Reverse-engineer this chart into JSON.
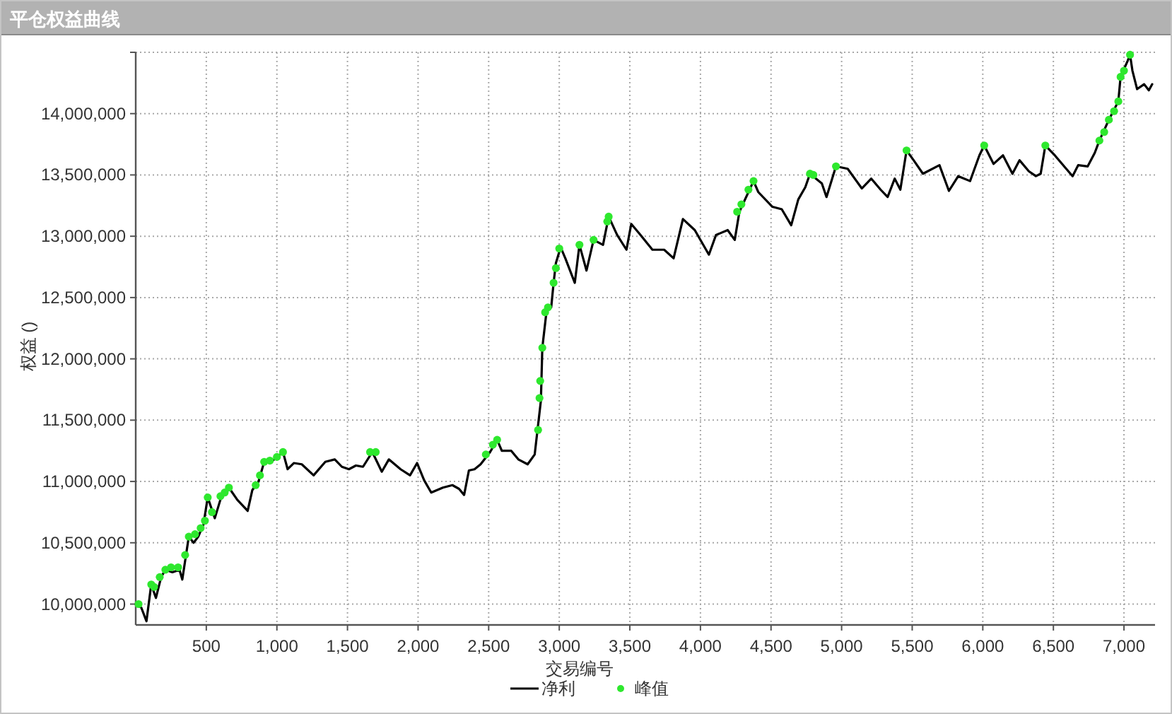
{
  "chart_data": {
    "type": "line",
    "title": "平仓权益曲线",
    "xlabel": "交易编号",
    "ylabel": "权益 ()",
    "xlim": [
      0,
      7220
    ],
    "ylim": [
      9830000,
      14500000
    ],
    "xticks": [
      500,
      {
        "value": 1000,
        "label": "1,000"
      },
      {
        "value": 1500,
        "label": "1,500"
      },
      {
        "value": 2000,
        "label": "2,000"
      },
      {
        "value": 2500,
        "label": "2,500"
      },
      {
        "value": 3000,
        "label": "3,000"
      },
      {
        "value": 3500,
        "label": "3,500"
      },
      {
        "value": 4000,
        "label": "4,000"
      },
      {
        "value": 4500,
        "label": "4,500"
      },
      {
        "value": 5000,
        "label": "5,000"
      },
      {
        "value": 5500,
        "label": "5,500"
      },
      {
        "value": 6000,
        "label": "6,000"
      },
      {
        "value": 6500,
        "label": "6,500"
      },
      {
        "value": 7000,
        "label": "7,000"
      }
    ],
    "yticks": [
      {
        "value": 10000000,
        "label": "10,000,000"
      },
      {
        "value": 10500000,
        "label": "10,500,000"
      },
      {
        "value": 11000000,
        "label": "11,000,000"
      },
      {
        "value": 11500000,
        "label": "11,500,000"
      },
      {
        "value": 12000000,
        "label": "12,000,000"
      },
      {
        "value": 12500000,
        "label": "12,500,000"
      },
      {
        "value": 13000000,
        "label": "13,000,000"
      },
      {
        "value": 13500000,
        "label": "13,500,000"
      },
      {
        "value": 14000000,
        "label": "14,000,000"
      },
      {
        "value": 14500000,
        "label": null
      }
    ],
    "grid": true,
    "legend": "bottom",
    "series": [
      {
        "name": "净利",
        "type": "line",
        "color": "#000000",
        "x": [
          0,
          40,
          76,
          110,
          143,
          180,
          210,
          260,
          310,
          330,
          376,
          410,
          443,
          480,
          510,
          560,
          610,
          660,
          720,
          793,
          826,
          870,
          910,
          960,
          1043,
          1076,
          1120,
          1176,
          1260,
          1343,
          1410,
          1460,
          1510,
          1560,
          1610,
          1676,
          1743,
          1793,
          1876,
          1943,
          1993,
          2043,
          2093,
          2176,
          2243,
          2290,
          2326,
          2360,
          2400,
          2443,
          2510,
          2560,
          2593,
          2660,
          2710,
          2776,
          2826,
          2843,
          2870,
          2880,
          2910,
          2943,
          2960,
          2976,
          3010,
          3043,
          3110,
          3143,
          3193,
          3243,
          3310,
          3350,
          3410,
          3476,
          3510,
          3576,
          3660,
          3743,
          3810,
          3876,
          3960,
          4060,
          4110,
          4193,
          4243,
          4276,
          4376,
          4410,
          4510,
          4576,
          4643,
          4693,
          4743,
          4776,
          4860,
          4893,
          4960,
          5043,
          5143,
          5210,
          5276,
          5326,
          5376,
          5416,
          5460,
          5510,
          5576,
          5693,
          5760,
          5826,
          5910,
          5976,
          6010,
          6076,
          6143,
          6210,
          6260,
          6326,
          6376,
          6410,
          6443,
          6510,
          6576,
          6636,
          6676,
          6743,
          6793,
          6826,
          6893,
          6960,
          6976,
          7026,
          7043,
          7060,
          7093,
          7143,
          7176,
          7200
        ],
        "values": [
          10000000,
          9970000,
          9860000,
          10160000,
          10050000,
          10220000,
          10280000,
          10260000,
          10280000,
          10200000,
          10550000,
          10500000,
          10550000,
          10650000,
          10870000,
          10700000,
          10890000,
          10950000,
          10850000,
          10760000,
          10930000,
          11000000,
          11160000,
          11160000,
          11240000,
          11100000,
          11150000,
          11140000,
          11050000,
          11160000,
          11180000,
          11120000,
          11100000,
          11130000,
          11120000,
          11240000,
          11080000,
          11180000,
          11100000,
          11050000,
          11150000,
          11010000,
          10910000,
          10950000,
          10970000,
          10940000,
          10890000,
          11090000,
          11100000,
          11140000,
          11240000,
          11340000,
          11250000,
          11250000,
          11180000,
          11140000,
          11220000,
          11390000,
          11660000,
          12090000,
          12390000,
          12420000,
          12620000,
          12780000,
          12910000,
          12820000,
          12620000,
          12930000,
          12720000,
          12970000,
          12930000,
          13160000,
          13010000,
          12890000,
          13100000,
          13010000,
          12890000,
          12890000,
          12820000,
          13140000,
          13050000,
          12850000,
          13010000,
          13050000,
          12970000,
          13200000,
          13450000,
          13360000,
          13240000,
          13220000,
          13090000,
          13300000,
          13400000,
          13510000,
          13430000,
          13320000,
          13570000,
          13550000,
          13390000,
          13470000,
          13380000,
          13320000,
          13470000,
          13380000,
          13700000,
          13620000,
          13510000,
          13580000,
          13370000,
          13490000,
          13450000,
          13660000,
          13740000,
          13590000,
          13660000,
          13510000,
          13620000,
          13530000,
          13490000,
          13510000,
          13740000,
          13660000,
          13570000,
          13490000,
          13580000,
          13570000,
          13680000,
          13780000,
          13950000,
          14100000,
          14300000,
          14430000,
          14480000,
          14350000,
          14200000,
          14240000,
          14190000,
          14240000
        ]
      },
      {
        "name": "峰值",
        "type": "scatter",
        "color": "#2ee82e",
        "marker": "circle",
        "x": [
          20,
          110,
          130,
          170,
          210,
          250,
          300,
          350,
          376,
          420,
          460,
          490,
          510,
          540,
          600,
          630,
          660,
          850,
          880,
          910,
          950,
          1000,
          1043,
          1660,
          1700,
          2480,
          2530,
          2560,
          2850,
          2860,
          2865,
          2880,
          2900,
          2920,
          2960,
          2976,
          3000,
          3143,
          3243,
          3340,
          3350,
          4260,
          4290,
          4340,
          4376,
          4776,
          4800,
          4960,
          5460,
          6010,
          6443,
          6826,
          6860,
          6893,
          6930,
          6960,
          6976,
          7000,
          7043
        ],
        "values": [
          10000000,
          10160000,
          10140000,
          10220000,
          10280000,
          10300000,
          10300000,
          10400000,
          10550000,
          10570000,
          10620000,
          10680000,
          10870000,
          10750000,
          10880000,
          10910000,
          10950000,
          10970000,
          11050000,
          11160000,
          11170000,
          11200000,
          11240000,
          11240000,
          11240000,
          11220000,
          11300000,
          11340000,
          11420000,
          11680000,
          11820000,
          12090000,
          12380000,
          12420000,
          12620000,
          12740000,
          12900000,
          12930000,
          12970000,
          13120000,
          13160000,
          13200000,
          13260000,
          13380000,
          13450000,
          13510000,
          13500000,
          13570000,
          13700000,
          13740000,
          13740000,
          13780000,
          13850000,
          13950000,
          14020000,
          14100000,
          14300000,
          14350000,
          14480000
        ]
      }
    ]
  }
}
